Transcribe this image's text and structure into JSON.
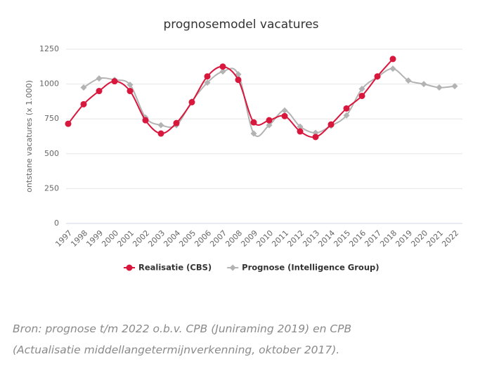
{
  "chart_data": {
    "type": "line",
    "title": "prognosemodel vacatures",
    "y_label": "ontstane vacatures (x 1.000)",
    "categories": [
      "1997",
      "1998",
      "1999",
      "2000",
      "2001",
      "2002",
      "2003",
      "2004",
      "2005",
      "2006",
      "2007",
      "2008",
      "2009",
      "2010",
      "2011",
      "2012",
      "2013",
      "2014",
      "2015",
      "2016",
      "2017",
      "2018",
      "2019",
      "2020",
      "2021",
      "2022"
    ],
    "series": [
      {
        "name": "Realisatie (CBS)",
        "color": "#d9163c",
        "marker": "circle",
        "values": [
          715,
          855,
          950,
          1020,
          950,
          740,
          645,
          720,
          870,
          1055,
          1125,
          1030,
          725,
          740,
          770,
          660,
          620,
          710,
          825,
          915,
          1055,
          1180,
          null,
          null,
          null,
          null
        ]
      },
      {
        "name": "Prognose (Intelligence Group)",
        "color": "#b3b3b3",
        "marker": "diamond",
        "values": [
          null,
          975,
          1040,
          1030,
          995,
          760,
          705,
          705,
          875,
          1010,
          1090,
          1070,
          645,
          705,
          810,
          695,
          650,
          700,
          775,
          965,
          1050,
          1110,
          1025,
          1000,
          975,
          985
        ]
      }
    ],
    "ylim": [
      0,
      1250
    ],
    "yticks": [
      0,
      250,
      500,
      750,
      1000,
      1250
    ],
    "grid": true,
    "legend": "bottom",
    "smooth": true
  },
  "source": "Bron: prognose t/m 2022 o.b.v. CPB (Juniraming 2019) en CPB (Actualisatie middellangetermijnverkenning, oktober 2017)."
}
